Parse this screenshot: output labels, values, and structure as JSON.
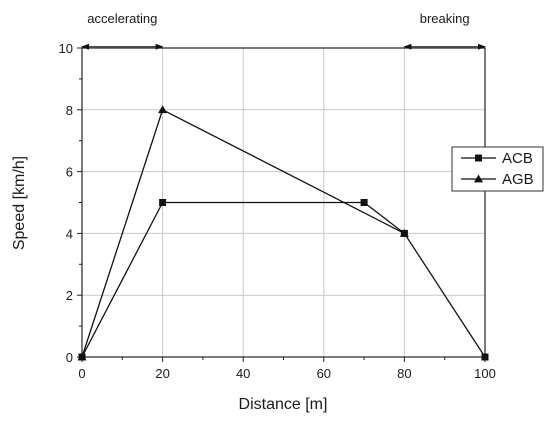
{
  "chart_data": {
    "type": "line",
    "title": "",
    "xlabel": "Distance [m]",
    "ylabel": "Speed [km/h]",
    "xlim": [
      0,
      100
    ],
    "ylim": [
      0,
      10
    ],
    "xticks": [
      "0",
      "20",
      "40",
      "60",
      "80",
      "100"
    ],
    "yticks": [
      "0",
      "2",
      "4",
      "6",
      "8",
      "10"
    ],
    "grid": true,
    "legend_position": "right",
    "series": [
      {
        "name": "ACB",
        "marker": "square",
        "color": "#111111",
        "x": [
          0,
          20,
          70,
          80,
          100
        ],
        "y": [
          0,
          5,
          5,
          4,
          0
        ]
      },
      {
        "name": "AGB",
        "marker": "triangle",
        "color": "#111111",
        "x": [
          0,
          20,
          80
        ],
        "y": [
          0,
          8,
          4
        ]
      }
    ],
    "annotations": [
      {
        "text": "accelerating",
        "x_from": 0,
        "x_to": 20,
        "at_y": 10.3
      },
      {
        "text": "breaking",
        "x_from": 80,
        "x_to": 100,
        "at_y": 10.3
      }
    ]
  }
}
